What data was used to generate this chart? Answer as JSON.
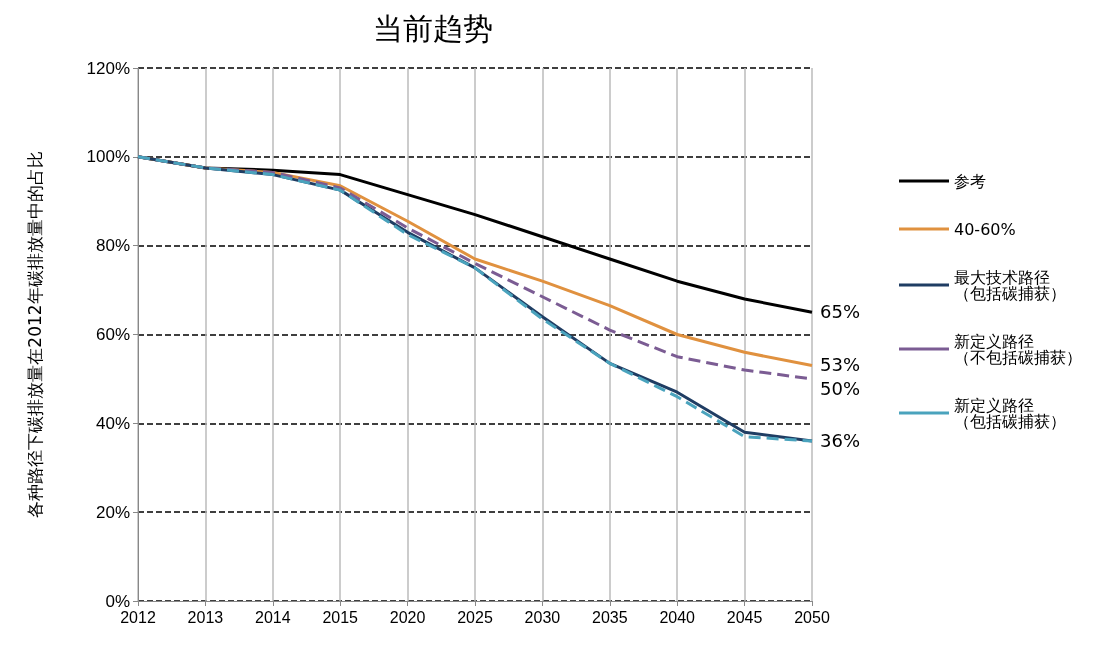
{
  "chart_data": {
    "type": "line",
    "title": "当前趋势",
    "ylabel": "各种路径下碳排放量在2012年碳排放量中的占比",
    "categories": [
      "2012",
      "2013",
      "2014",
      "2015",
      "2020",
      "2025",
      "2030",
      "2035",
      "2040",
      "2045",
      "2050"
    ],
    "series": [
      {
        "name": "参考",
        "color": "#000000",
        "line_style": "solid",
        "values": [
          100,
          97.5,
          97,
          96,
          91.5,
          87,
          82,
          77,
          72,
          68,
          65
        ]
      },
      {
        "name": "40-60%",
        "color": "#e0913f",
        "line_style": "solid",
        "values": [
          100,
          97.5,
          96.5,
          93.5,
          85.5,
          77,
          72,
          66.5,
          60,
          56,
          53
        ]
      },
      {
        "name": "最大技术路径（包括碳捕获）",
        "color": "#1f3d63",
        "line_style": "solid",
        "values": [
          100,
          97.5,
          96,
          92.5,
          83,
          75,
          64,
          53.5,
          47,
          38,
          36
        ]
      },
      {
        "name": "新定义路径（不包括碳捕获）",
        "color": "#7b5c93",
        "line_style": "dashed",
        "values": [
          100,
          97.5,
          96.5,
          93,
          84,
          76,
          68.5,
          61,
          55,
          52,
          50
        ]
      },
      {
        "name": "新定义路径（包括碳捕获）",
        "color": "#4aa3bd",
        "line_style": "dashed",
        "values": [
          100,
          97.5,
          96,
          92.5,
          82.5,
          75,
          63.5,
          53.5,
          46,
          37,
          36
        ]
      }
    ],
    "ylim": [
      0,
      120
    ],
    "yticks": [
      {
        "value": 0,
        "label": "0%"
      },
      {
        "value": 20,
        "label": "20%"
      },
      {
        "value": 40,
        "label": "40%"
      },
      {
        "value": 60,
        "label": "60%"
      },
      {
        "value": 80,
        "label": "80%"
      },
      {
        "value": 100,
        "label": "100%"
      },
      {
        "value": 120,
        "label": "120%"
      }
    ],
    "grid": true,
    "legend": "right",
    "marker": "none",
    "annotations": [
      {
        "text": "65%",
        "x": "2050",
        "y": 65
      },
      {
        "text": "53%",
        "x": "2050",
        "y": 53
      },
      {
        "text": "50%",
        "x": "2050",
        "y": 50
      },
      {
        "text": "36%",
        "x": "2050",
        "y": 36
      }
    ]
  }
}
